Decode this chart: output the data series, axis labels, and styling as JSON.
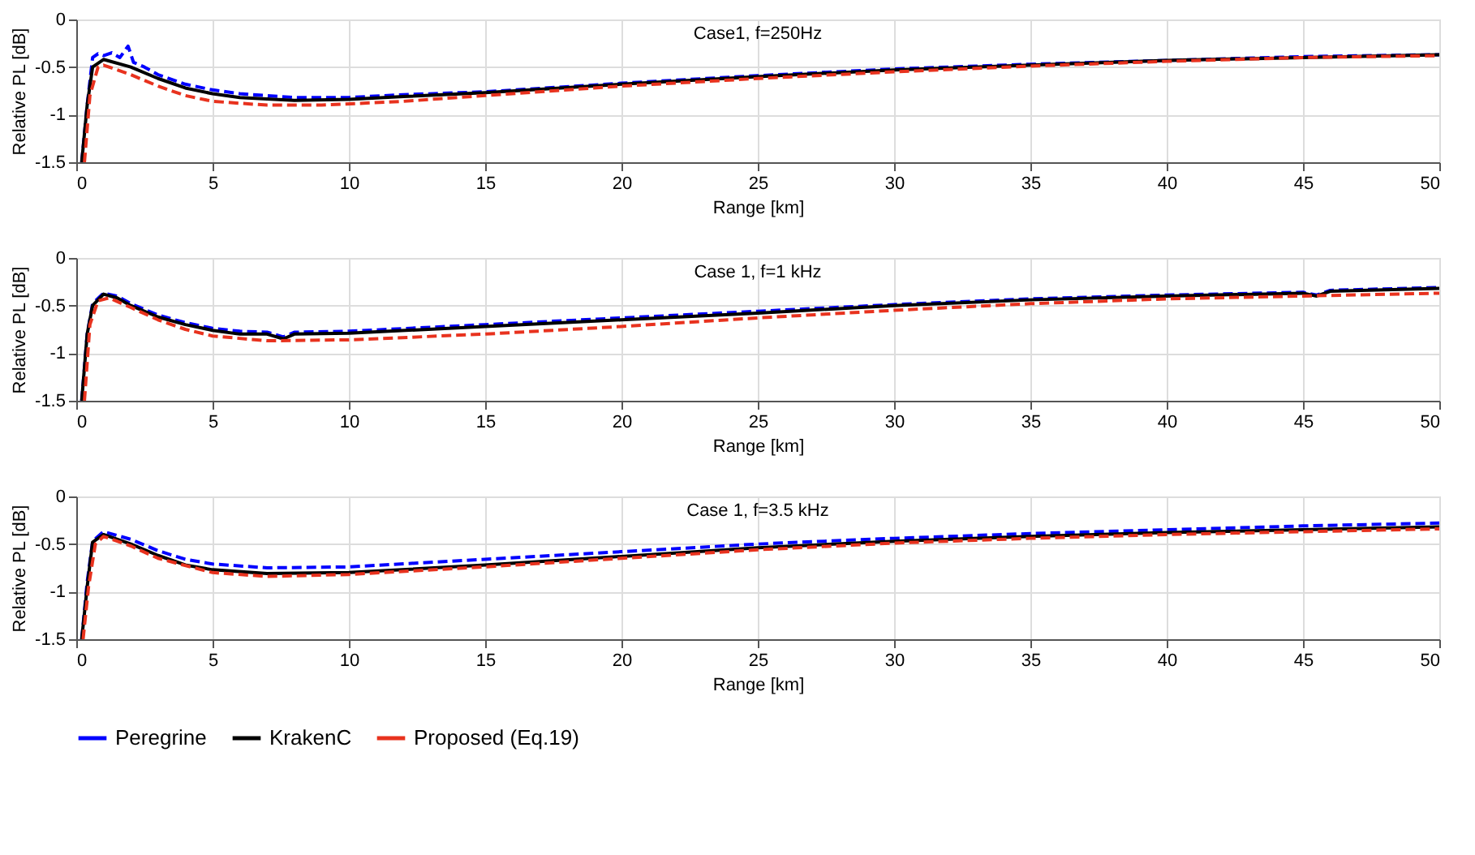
{
  "chart_data": [
    {
      "type": "line",
      "title": "Case1, f=250Hz",
      "xlabel": "Range [km]",
      "ylabel": "Relative PL [dB]",
      "xlim": [
        0,
        50
      ],
      "ylim": [
        -1.5,
        0
      ],
      "xticks": [
        0,
        5,
        10,
        15,
        20,
        25,
        30,
        35,
        40,
        45,
        50
      ],
      "yticks": [
        -1.5,
        -1,
        -0.5,
        0
      ],
      "grid": true,
      "legend": false,
      "series": [
        {
          "color": "#0000ff",
          "line_style": "dashed",
          "x": [
            0.2,
            0.4,
            0.6,
            0.8,
            1,
            1.3,
            1.6,
            1.9,
            2.1,
            2.5,
            3,
            4,
            5,
            6,
            8,
            10,
            12,
            15,
            20,
            25,
            30,
            35,
            40,
            45,
            50
          ],
          "values": [
            -1.5,
            -0.9,
            -0.4,
            -0.36,
            -0.38,
            -0.35,
            -0.4,
            -0.28,
            -0.45,
            -0.5,
            -0.58,
            -0.68,
            -0.74,
            -0.78,
            -0.82,
            -0.82,
            -0.79,
            -0.76,
            -0.67,
            -0.59,
            -0.52,
            -0.47,
            -0.43,
            -0.39,
            -0.37
          ]
        },
        {
          "color": "#000000",
          "line_style": "solid",
          "x": [
            0.2,
            0.4,
            0.6,
            1,
            2,
            3,
            4,
            5,
            6,
            8,
            10,
            12,
            15,
            20,
            25,
            30,
            35,
            40,
            45,
            50
          ],
          "values": [
            -1.5,
            -0.9,
            -0.5,
            -0.42,
            -0.5,
            -0.62,
            -0.72,
            -0.78,
            -0.82,
            -0.85,
            -0.84,
            -0.81,
            -0.77,
            -0.68,
            -0.6,
            -0.53,
            -0.48,
            -0.43,
            -0.4,
            -0.37
          ]
        },
        {
          "color": "#e8321e",
          "line_style": "dashed",
          "x": [
            0.3,
            0.5,
            0.8,
            1,
            2,
            3,
            4,
            5,
            7,
            9,
            12,
            15,
            20,
            25,
            30,
            35,
            40,
            45,
            50
          ],
          "values": [
            -1.5,
            -0.8,
            -0.5,
            -0.48,
            -0.58,
            -0.7,
            -0.8,
            -0.86,
            -0.9,
            -0.9,
            -0.86,
            -0.8,
            -0.7,
            -0.62,
            -0.55,
            -0.49,
            -0.44,
            -0.4,
            -0.38
          ]
        }
      ]
    },
    {
      "type": "line",
      "title": "Case 1, f=1 kHz",
      "xlabel": "Range [km]",
      "ylabel": "Relative PL [dB]",
      "xlim": [
        0,
        50
      ],
      "ylim": [
        -1.5,
        0
      ],
      "xticks": [
        0,
        5,
        10,
        15,
        20,
        25,
        30,
        35,
        40,
        45,
        50
      ],
      "yticks": [
        -1.5,
        -1,
        -0.5,
        0
      ],
      "grid": true,
      "legend": false,
      "series": [
        {
          "color": "#0000ff",
          "line_style": "dashed",
          "x": [
            0.2,
            0.4,
            0.6,
            1,
            1.5,
            2,
            3,
            4,
            5,
            6,
            7,
            7.6,
            8,
            10,
            15,
            20,
            25,
            30,
            35,
            40,
            45,
            45.5,
            46,
            50
          ],
          "values": [
            -1.5,
            -0.8,
            -0.48,
            -0.37,
            -0.4,
            -0.48,
            -0.6,
            -0.68,
            -0.74,
            -0.77,
            -0.78,
            -0.83,
            -0.78,
            -0.77,
            -0.7,
            -0.63,
            -0.56,
            -0.49,
            -0.43,
            -0.39,
            -0.36,
            -0.39,
            -0.34,
            -0.31
          ]
        },
        {
          "color": "#000000",
          "line_style": "solid",
          "x": [
            0.2,
            0.4,
            0.6,
            1,
            1.5,
            2,
            3,
            4,
            5,
            6,
            7,
            7.6,
            8,
            10,
            15,
            20,
            25,
            30,
            35,
            40,
            45,
            45.5,
            46,
            50
          ],
          "values": [
            -1.5,
            -0.8,
            -0.5,
            -0.38,
            -0.42,
            -0.5,
            -0.62,
            -0.7,
            -0.76,
            -0.8,
            -0.8,
            -0.85,
            -0.8,
            -0.79,
            -0.72,
            -0.65,
            -0.58,
            -0.5,
            -0.44,
            -0.4,
            -0.37,
            -0.4,
            -0.35,
            -0.32
          ]
        },
        {
          "color": "#e8321e",
          "line_style": "dashed",
          "x": [
            0.3,
            0.5,
            0.8,
            1.2,
            2,
            3,
            4,
            5,
            7,
            10,
            15,
            20,
            25,
            30,
            35,
            40,
            45,
            50
          ],
          "values": [
            -1.5,
            -0.7,
            -0.45,
            -0.42,
            -0.52,
            -0.65,
            -0.75,
            -0.82,
            -0.87,
            -0.86,
            -0.8,
            -0.72,
            -0.63,
            -0.55,
            -0.48,
            -0.43,
            -0.4,
            -0.37
          ]
        }
      ]
    },
    {
      "type": "line",
      "title": "Case 1, f=3.5 kHz",
      "xlabel": "Range [km]",
      "ylabel": "Relative PL [dB]",
      "xlim": [
        0,
        50
      ],
      "ylim": [
        -1.5,
        0
      ],
      "xticks": [
        0,
        5,
        10,
        15,
        20,
        25,
        30,
        35,
        40,
        45,
        50
      ],
      "yticks": [
        -1.5,
        -1,
        -0.5,
        0
      ],
      "grid": true,
      "legend": "bottom",
      "series": [
        {
          "name": "Peregrine",
          "color": "#0000ff",
          "line_style": "dashed",
          "x": [
            0.2,
            0.4,
            0.6,
            1,
            2,
            3,
            4,
            5,
            7,
            10,
            15,
            20,
            25,
            30,
            35,
            40,
            45,
            50
          ],
          "values": [
            -1.5,
            -0.9,
            -0.47,
            -0.37,
            -0.45,
            -0.57,
            -0.66,
            -0.71,
            -0.75,
            -0.74,
            -0.66,
            -0.58,
            -0.5,
            -0.44,
            -0.39,
            -0.35,
            -0.31,
            -0.28
          ]
        },
        {
          "name": "KrakenC",
          "color": "#000000",
          "line_style": "solid",
          "x": [
            0.2,
            0.4,
            0.6,
            1,
            2,
            3,
            4,
            5,
            7,
            10,
            15,
            20,
            25,
            30,
            35,
            40,
            45,
            50
          ],
          "values": [
            -1.5,
            -0.95,
            -0.48,
            -0.4,
            -0.5,
            -0.62,
            -0.72,
            -0.77,
            -0.81,
            -0.8,
            -0.72,
            -0.63,
            -0.54,
            -0.47,
            -0.42,
            -0.38,
            -0.35,
            -0.32
          ]
        },
        {
          "name": "Proposed (Eq.19)",
          "color": "#e8321e",
          "line_style": "dashed",
          "x": [
            0.25,
            0.45,
            0.7,
            1,
            2,
            3,
            5,
            7,
            10,
            15,
            20,
            25,
            30,
            35,
            40,
            45,
            50
          ],
          "values": [
            -1.5,
            -0.95,
            -0.5,
            -0.42,
            -0.52,
            -0.65,
            -0.8,
            -0.84,
            -0.82,
            -0.74,
            -0.65,
            -0.56,
            -0.49,
            -0.44,
            -0.4,
            -0.37,
            -0.34
          ]
        }
      ]
    }
  ]
}
